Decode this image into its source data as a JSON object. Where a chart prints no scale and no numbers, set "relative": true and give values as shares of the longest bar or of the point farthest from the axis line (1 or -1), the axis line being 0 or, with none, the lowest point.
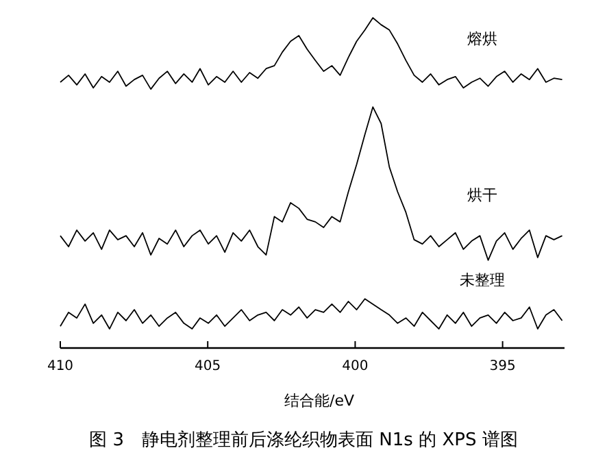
{
  "chart_data": {
    "type": "line",
    "relative": true,
    "title": "图 3　静电剂整理前后涤纶织物表面 N1s 的 XPS 谱图",
    "xlabel": "结合能/eV",
    "xlim": [
      410,
      392.9
    ],
    "xticks": [
      410,
      405,
      400,
      395
    ],
    "x": [
      410.0,
      409.72,
      409.44,
      409.16,
      408.88,
      408.6,
      408.33,
      408.05,
      407.77,
      407.49,
      407.21,
      406.93,
      406.65,
      406.37,
      406.09,
      405.81,
      405.53,
      405.26,
      404.98,
      404.7,
      404.42,
      404.14,
      403.86,
      403.58,
      403.3,
      403.02,
      402.74,
      402.47,
      402.19,
      401.91,
      401.63,
      401.35,
      401.07,
      400.79,
      400.51,
      400.23,
      399.95,
      399.67,
      399.4,
      399.12,
      398.84,
      398.56,
      398.28,
      398.0,
      397.72,
      397.44,
      397.16,
      396.88,
      396.6,
      396.33,
      396.05,
      395.77,
      395.49,
      395.21,
      394.93,
      394.65,
      394.37,
      394.09,
      393.81,
      393.53,
      393.26,
      392.98
    ],
    "series": [
      {
        "name": "熔烘",
        "color": "#000000",
        "values": [
          0.805,
          0.826,
          0.797,
          0.83,
          0.788,
          0.822,
          0.805,
          0.838,
          0.793,
          0.813,
          0.826,
          0.784,
          0.817,
          0.838,
          0.801,
          0.83,
          0.805,
          0.846,
          0.797,
          0.822,
          0.805,
          0.838,
          0.805,
          0.834,
          0.817,
          0.846,
          0.855,
          0.896,
          0.929,
          0.946,
          0.905,
          0.871,
          0.838,
          0.855,
          0.826,
          0.88,
          0.929,
          0.963,
          1,
          0.979,
          0.963,
          0.921,
          0.871,
          0.826,
          0.805,
          0.83,
          0.797,
          0.813,
          0.822,
          0.788,
          0.805,
          0.817,
          0.793,
          0.822,
          0.838,
          0.805,
          0.83,
          0.813,
          0.846,
          0.805,
          0.817,
          0.813
        ]
      },
      {
        "name": "烘干",
        "color": "#000000",
        "values": [
          0.34,
          0.307,
          0.357,
          0.324,
          0.349,
          0.299,
          0.357,
          0.328,
          0.34,
          0.307,
          0.349,
          0.282,
          0.332,
          0.315,
          0.357,
          0.307,
          0.34,
          0.357,
          0.315,
          0.34,
          0.29,
          0.349,
          0.324,
          0.357,
          0.307,
          0.282,
          0.398,
          0.382,
          0.44,
          0.423,
          0.39,
          0.382,
          0.365,
          0.398,
          0.382,
          0.473,
          0.556,
          0.647,
          0.73,
          0.68,
          0.548,
          0.473,
          0.411,
          0.328,
          0.315,
          0.34,
          0.307,
          0.328,
          0.349,
          0.299,
          0.324,
          0.34,
          0.266,
          0.324,
          0.349,
          0.299,
          0.332,
          0.357,
          0.274,
          0.34,
          0.328,
          0.34
        ]
      },
      {
        "name": "未整理",
        "color": "#000000",
        "values": [
          0.066,
          0.108,
          0.091,
          0.133,
          0.075,
          0.1,
          0.058,
          0.108,
          0.083,
          0.116,
          0.075,
          0.1,
          0.066,
          0.091,
          0.108,
          0.075,
          0.058,
          0.091,
          0.075,
          0.1,
          0.066,
          0.091,
          0.116,
          0.083,
          0.1,
          0.108,
          0.083,
          0.116,
          0.1,
          0.124,
          0.091,
          0.116,
          0.108,
          0.133,
          0.108,
          0.141,
          0.116,
          0.149,
          0.133,
          0.116,
          0.1,
          0.075,
          0.091,
          0.066,
          0.108,
          0.083,
          0.058,
          0.1,
          0.075,
          0.108,
          0.066,
          0.091,
          0.1,
          0.075,
          0.108,
          0.083,
          0.091,
          0.124,
          0.058,
          0.1,
          0.116,
          0.083
        ]
      }
    ]
  }
}
